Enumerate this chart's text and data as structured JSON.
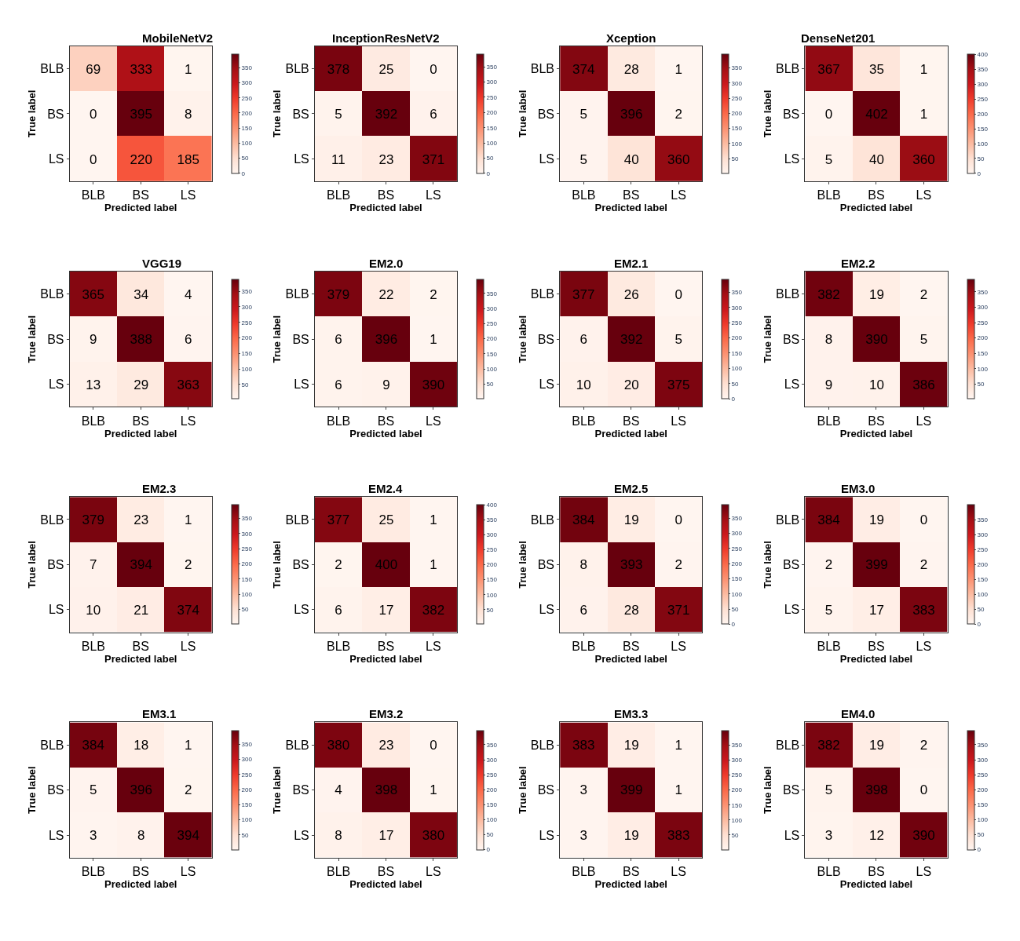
{
  "chart_data": [
    {
      "type": "heatmap",
      "title": "MobileNetV2",
      "xlabel": "Predicted label",
      "ylabel": "True label",
      "categories": [
        "BLB",
        "BS",
        "LS"
      ],
      "y_categories": [
        "BLB",
        "BS",
        "LS"
      ],
      "cells": [
        [
          69,
          333,
          1
        ],
        [
          0,
          395,
          8
        ],
        [
          0,
          220,
          185
        ]
      ],
      "clim": [
        0,
        395
      ],
      "cticks": [
        0,
        50,
        100,
        150,
        200,
        250,
        300,
        350
      ],
      "data_labels": true
    },
    {
      "type": "heatmap",
      "title": "InceptionResNetV2",
      "xlabel": "Predicted label",
      "ylabel": "True label",
      "categories": [
        "BLB",
        "BS",
        "LS"
      ],
      "y_categories": [
        "BLB",
        "BS",
        "LS"
      ],
      "cells": [
        [
          378,
          25,
          0
        ],
        [
          5,
          392,
          6
        ],
        [
          11,
          23,
          371
        ]
      ],
      "clim": [
        0,
        392
      ],
      "cticks": [
        0,
        50,
        100,
        150,
        200,
        250,
        300,
        350
      ],
      "data_labels": true
    },
    {
      "type": "heatmap",
      "title": "Xception",
      "xlabel": "Predicted label",
      "ylabel": "True label",
      "categories": [
        "BLB",
        "BS",
        "LS"
      ],
      "y_categories": [
        "BLB",
        "BS",
        "LS"
      ],
      "cells": [
        [
          374,
          28,
          1
        ],
        [
          5,
          396,
          2
        ],
        [
          5,
          40,
          360
        ]
      ],
      "clim": [
        1,
        396
      ],
      "cticks": [
        50,
        100,
        150,
        200,
        250,
        300,
        350
      ],
      "data_labels": true
    },
    {
      "type": "heatmap",
      "title": "DenseNet201",
      "xlabel": "Predicted label",
      "ylabel": "True label",
      "categories": [
        "BLB",
        "BS",
        "LS"
      ],
      "y_categories": [
        "BLB",
        "BS",
        "LS"
      ],
      "cells": [
        [
          367,
          35,
          1
        ],
        [
          0,
          402,
          1
        ],
        [
          5,
          40,
          360
        ]
      ],
      "clim": [
        0,
        402
      ],
      "cticks": [
        0,
        50,
        100,
        150,
        200,
        250,
        300,
        350,
        400
      ],
      "data_labels": true
    },
    {
      "type": "heatmap",
      "title": "VGG19",
      "xlabel": "Predicted label",
      "ylabel": "True label",
      "categories": [
        "BLB",
        "BS",
        "LS"
      ],
      "y_categories": [
        "BLB",
        "BS",
        "LS"
      ],
      "cells": [
        [
          365,
          34,
          4
        ],
        [
          9,
          388,
          6
        ],
        [
          13,
          29,
          363
        ]
      ],
      "clim": [
        4,
        388
      ],
      "cticks": [
        50,
        100,
        150,
        200,
        250,
        300,
        350
      ],
      "data_labels": true
    },
    {
      "type": "heatmap",
      "title": "EM2.0",
      "xlabel": "Predicted label",
      "ylabel": "True label",
      "categories": [
        "BLB",
        "BS",
        "LS"
      ],
      "y_categories": [
        "BLB",
        "BS",
        "LS"
      ],
      "cells": [
        [
          379,
          22,
          2
        ],
        [
          6,
          396,
          1
        ],
        [
          6,
          9,
          390
        ]
      ],
      "clim": [
        1,
        396
      ],
      "cticks": [
        50,
        100,
        150,
        200,
        250,
        300,
        350
      ],
      "data_labels": true
    },
    {
      "type": "heatmap",
      "title": "EM2.1",
      "xlabel": "Predicted label",
      "ylabel": "True label",
      "categories": [
        "BLB",
        "BS",
        "LS"
      ],
      "y_categories": [
        "BLB",
        "BS",
        "LS"
      ],
      "cells": [
        [
          377,
          26,
          0
        ],
        [
          6,
          392,
          5
        ],
        [
          10,
          20,
          375
        ]
      ],
      "clim": [
        0,
        392
      ],
      "cticks": [
        0,
        50,
        100,
        150,
        200,
        250,
        300,
        350
      ],
      "data_labels": true
    },
    {
      "type": "heatmap",
      "title": "EM2.2",
      "xlabel": "Predicted label",
      "ylabel": "True label",
      "categories": [
        "BLB",
        "BS",
        "LS"
      ],
      "y_categories": [
        "BLB",
        "BS",
        "LS"
      ],
      "cells": [
        [
          382,
          19,
          2
        ],
        [
          8,
          390,
          5
        ],
        [
          9,
          10,
          386
        ]
      ],
      "clim": [
        2,
        390
      ],
      "cticks": [
        50,
        100,
        150,
        200,
        250,
        300,
        350
      ],
      "data_labels": true
    },
    {
      "type": "heatmap",
      "title": "EM2.3",
      "xlabel": "Predicted label",
      "ylabel": "True label",
      "categories": [
        "BLB",
        "BS",
        "LS"
      ],
      "y_categories": [
        "BLB",
        "BS",
        "LS"
      ],
      "cells": [
        [
          379,
          23,
          1
        ],
        [
          7,
          394,
          2
        ],
        [
          10,
          21,
          374
        ]
      ],
      "clim": [
        1,
        394
      ],
      "cticks": [
        50,
        100,
        150,
        200,
        250,
        300,
        350
      ],
      "data_labels": true
    },
    {
      "type": "heatmap",
      "title": "EM2.4",
      "xlabel": "Predicted label",
      "ylabel": "True label",
      "categories": [
        "BLB",
        "BS",
        "LS"
      ],
      "y_categories": [
        "BLB",
        "BS",
        "LS"
      ],
      "cells": [
        [
          377,
          25,
          1
        ],
        [
          2,
          400,
          1
        ],
        [
          6,
          17,
          382
        ]
      ],
      "clim": [
        1,
        400
      ],
      "cticks": [
        50,
        100,
        150,
        200,
        250,
        300,
        350,
        400
      ],
      "data_labels": true
    },
    {
      "type": "heatmap",
      "title": "EM2.5",
      "xlabel": "Predicted label",
      "ylabel": "True label",
      "categories": [
        "BLB",
        "BS",
        "LS"
      ],
      "y_categories": [
        "BLB",
        "BS",
        "LS"
      ],
      "cells": [
        [
          384,
          19,
          0
        ],
        [
          8,
          393,
          2
        ],
        [
          6,
          28,
          371
        ]
      ],
      "clim": [
        0,
        393
      ],
      "cticks": [
        0,
        50,
        100,
        150,
        200,
        250,
        300,
        350
      ],
      "data_labels": true
    },
    {
      "type": "heatmap",
      "title": "EM3.0",
      "xlabel": "Predicted label",
      "ylabel": "True label",
      "categories": [
        "BLB",
        "BS",
        "LS"
      ],
      "y_categories": [
        "BLB",
        "BS",
        "LS"
      ],
      "cells": [
        [
          384,
          19,
          0
        ],
        [
          2,
          399,
          2
        ],
        [
          5,
          17,
          383
        ]
      ],
      "clim": [
        0,
        399
      ],
      "cticks": [
        0,
        50,
        100,
        150,
        200,
        250,
        300,
        350
      ],
      "data_labels": true
    },
    {
      "type": "heatmap",
      "title": "EM3.1",
      "xlabel": "Predicted label",
      "ylabel": "True label",
      "categories": [
        "BLB",
        "BS",
        "LS"
      ],
      "y_categories": [
        "BLB",
        "BS",
        "LS"
      ],
      "cells": [
        [
          384,
          18,
          1
        ],
        [
          5,
          396,
          2
        ],
        [
          3,
          8,
          394
        ]
      ],
      "clim": [
        1,
        396
      ],
      "cticks": [
        50,
        100,
        150,
        200,
        250,
        300,
        350
      ],
      "data_labels": true
    },
    {
      "type": "heatmap",
      "title": "EM3.2",
      "xlabel": "Predicted label",
      "ylabel": "True label",
      "categories": [
        "BLB",
        "BS",
        "LS"
      ],
      "y_categories": [
        "BLB",
        "BS",
        "LS"
      ],
      "cells": [
        [
          380,
          23,
          0
        ],
        [
          4,
          398,
          1
        ],
        [
          8,
          17,
          380
        ]
      ],
      "clim": [
        0,
        398
      ],
      "cticks": [
        0,
        50,
        100,
        150,
        200,
        250,
        300,
        350
      ],
      "data_labels": true
    },
    {
      "type": "heatmap",
      "title": "EM3.3",
      "xlabel": "Predicted label",
      "ylabel": "True label",
      "categories": [
        "BLB",
        "BS",
        "LS"
      ],
      "y_categories": [
        "BLB",
        "BS",
        "LS"
      ],
      "cells": [
        [
          383,
          19,
          1
        ],
        [
          3,
          399,
          1
        ],
        [
          3,
          19,
          383
        ]
      ],
      "clim": [
        1,
        399
      ],
      "cticks": [
        50,
        100,
        150,
        200,
        250,
        300,
        350
      ],
      "data_labels": true
    },
    {
      "type": "heatmap",
      "title": "EM4.0",
      "xlabel": "Predicted label",
      "ylabel": "True label",
      "categories": [
        "BLB",
        "BS",
        "LS"
      ],
      "y_categories": [
        "BLB",
        "BS",
        "LS"
      ],
      "cells": [
        [
          382,
          19,
          2
        ],
        [
          5,
          398,
          0
        ],
        [
          3,
          12,
          390
        ]
      ],
      "clim": [
        0,
        398
      ],
      "cticks": [
        0,
        50,
        100,
        150,
        200,
        250,
        300,
        350
      ],
      "data_labels": true
    }
  ]
}
